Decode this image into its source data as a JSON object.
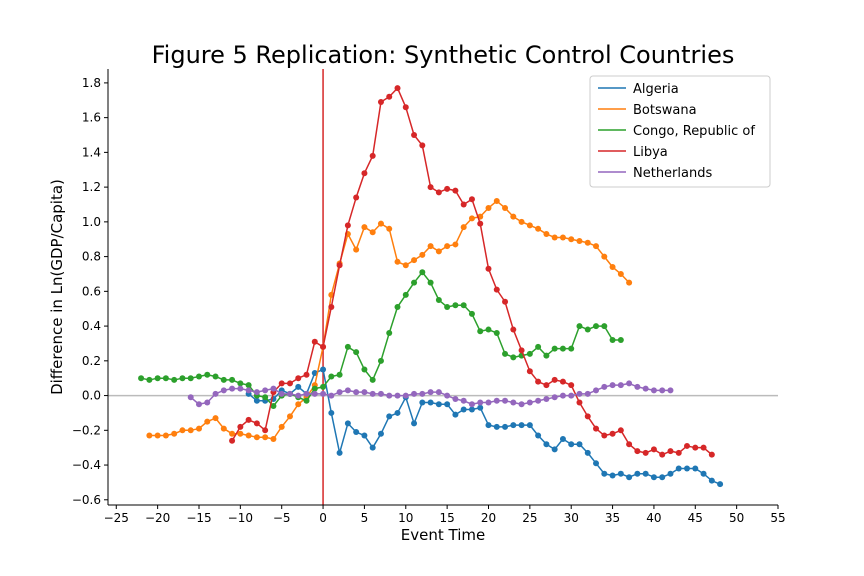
{
  "chart_data": {
    "type": "line",
    "title": "Figure 5 Replication: Synthetic Control Countries",
    "xlabel": "Event Time",
    "ylabel": "Difference in Ln(GDP/Capita)",
    "xlim": [
      -26,
      55
    ],
    "ylim": [
      -0.63,
      1.88
    ],
    "xticks": [
      -25,
      -20,
      -15,
      -10,
      -5,
      0,
      5,
      10,
      15,
      20,
      25,
      30,
      35,
      40,
      45,
      50,
      55
    ],
    "yticks": [
      -0.6,
      -0.4,
      -0.2,
      0.0,
      0.2,
      0.4,
      0.6,
      0.8,
      1.0,
      1.2,
      1.4,
      1.6,
      1.8
    ],
    "ytick_labels": [
      "−0.6",
      "−0.4",
      "−0.2",
      "0.0",
      "0.2",
      "0.4",
      "0.6",
      "0.8",
      "1.0",
      "1.2",
      "1.4",
      "1.6",
      "1.8"
    ],
    "xtick_labels": [
      "−25",
      "−20",
      "−15",
      "−10",
      "−5",
      "0",
      "5",
      "10",
      "15",
      "20",
      "25",
      "30",
      "35",
      "40",
      "45",
      "50",
      "55"
    ],
    "reference_lines": {
      "vertical_x": 0,
      "vertical_color": "#d62728",
      "horizontal_y": 0,
      "horizontal_color": "#bbbbbb"
    },
    "legend_position": "top-right",
    "series": [
      {
        "name": "Algeria",
        "color": "#1f77b4",
        "x_start": -9,
        "values": [
          0.01,
          -0.03,
          -0.03,
          -0.02,
          0.03,
          0.01,
          0.05,
          0.01,
          0.13,
          0.15,
          -0.1,
          -0.33,
          -0.16,
          -0.21,
          -0.23,
          -0.3,
          -0.22,
          -0.12,
          -0.1,
          -0.01,
          -0.16,
          -0.04,
          -0.04,
          -0.05,
          -0.05,
          -0.11,
          -0.08,
          -0.08,
          -0.07,
          -0.17,
          -0.18,
          -0.18,
          -0.17,
          -0.17,
          -0.17,
          -0.23,
          -0.28,
          -0.31,
          -0.25,
          -0.28,
          -0.28,
          -0.33,
          -0.39,
          -0.45,
          -0.46,
          -0.45,
          -0.47,
          -0.45,
          -0.45,
          -0.47,
          -0.47,
          -0.45,
          -0.42,
          -0.42,
          -0.42,
          -0.45,
          -0.49,
          -0.51
        ]
      },
      {
        "name": "Botswana",
        "color": "#ff7f0e",
        "x_start": -21,
        "values": [
          -0.23,
          -0.23,
          -0.23,
          -0.22,
          -0.2,
          -0.2,
          -0.19,
          -0.15,
          -0.13,
          -0.19,
          -0.22,
          -0.22,
          -0.23,
          -0.24,
          -0.24,
          -0.25,
          -0.18,
          -0.12,
          -0.05,
          -0.01,
          0.06,
          0.28,
          0.58,
          0.76,
          0.93,
          0.84,
          0.97,
          0.94,
          0.99,
          0.96,
          0.77,
          0.75,
          0.78,
          0.81,
          0.86,
          0.83,
          0.86,
          0.87,
          0.97,
          1.02,
          1.03,
          1.08,
          1.12,
          1.08,
          1.03,
          1.0,
          0.98,
          0.96,
          0.93,
          0.91,
          0.91,
          0.9,
          0.89,
          0.88,
          0.86,
          0.8,
          0.74,
          0.7,
          0.65
        ]
      },
      {
        "name": "Congo, Republic of",
        "color": "#2ca02c",
        "x_start": -22,
        "values": [
          0.1,
          0.09,
          0.1,
          0.1,
          0.09,
          0.1,
          0.1,
          0.11,
          0.12,
          0.11,
          0.09,
          0.09,
          0.07,
          0.06,
          0.0,
          -0.01,
          -0.06,
          0.0,
          0.01,
          -0.01,
          -0.03,
          0.04,
          0.05,
          0.11,
          0.12,
          0.28,
          0.25,
          0.15,
          0.09,
          0.2,
          0.36,
          0.51,
          0.58,
          0.65,
          0.71,
          0.65,
          0.55,
          0.51,
          0.52,
          0.52,
          0.47,
          0.37,
          0.38,
          0.36,
          0.24,
          0.22,
          0.23,
          0.24,
          0.28,
          0.23,
          0.27,
          0.27,
          0.27,
          0.4,
          0.38,
          0.4,
          0.4,
          0.32,
          0.32
        ]
      },
      {
        "name": "Libya",
        "color": "#d62728",
        "x_start": -11,
        "values": [
          -0.26,
          -0.18,
          -0.14,
          -0.16,
          -0.2,
          0.02,
          0.07,
          0.07,
          0.1,
          0.12,
          0.31,
          0.28,
          0.51,
          0.75,
          0.98,
          1.14,
          1.28,
          1.38,
          1.69,
          1.72,
          1.77,
          1.66,
          1.5,
          1.44,
          1.2,
          1.17,
          1.19,
          1.18,
          1.1,
          1.13,
          0.99,
          0.73,
          0.61,
          0.54,
          0.38,
          0.26,
          0.14,
          0.08,
          0.06,
          0.09,
          0.08,
          0.06,
          -0.04,
          -0.12,
          -0.19,
          -0.23,
          -0.22,
          -0.2,
          -0.28,
          -0.32,
          -0.33,
          -0.31,
          -0.34,
          -0.32,
          -0.33,
          -0.29,
          -0.3,
          -0.3,
          -0.34
        ]
      },
      {
        "name": "Netherlands",
        "color": "#9467bd",
        "x_start": -16,
        "values": [
          -0.01,
          -0.05,
          -0.04,
          0.01,
          0.03,
          0.04,
          0.04,
          0.03,
          0.02,
          0.03,
          0.04,
          0.01,
          0.01,
          0.0,
          0.01,
          0.01,
          0.01,
          0.0,
          0.02,
          0.03,
          0.02,
          0.02,
          0.01,
          0.01,
          0.0,
          0.0,
          0.0,
          0.01,
          0.01,
          0.02,
          0.02,
          0.0,
          -0.02,
          -0.03,
          -0.05,
          -0.04,
          -0.04,
          -0.03,
          -0.03,
          -0.04,
          -0.05,
          -0.04,
          -0.03,
          -0.02,
          -0.01,
          0.0,
          0.0,
          0.01,
          0.01,
          0.03,
          0.05,
          0.06,
          0.06,
          0.07,
          0.05,
          0.04,
          0.03,
          0.03,
          0.03
        ]
      }
    ]
  }
}
